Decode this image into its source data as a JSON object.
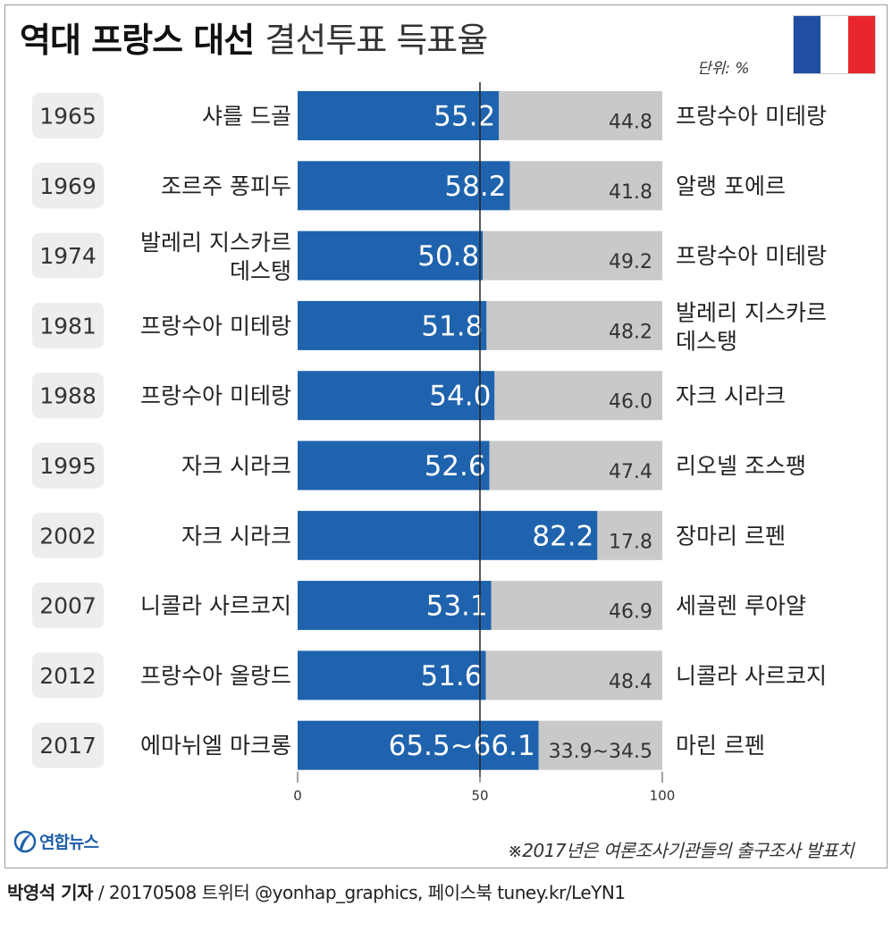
{
  "header": {
    "title_bold": "역대 프랑스 대선",
    "title_light": "결선투표 득표율",
    "unit": "단위: %"
  },
  "flag_colors": [
    "#1f4ea3",
    "#ffffff",
    "#e8262c"
  ],
  "colors": {
    "winner": "#1f63ae",
    "loser": "#c9c9c9",
    "year_box": "#ededed"
  },
  "chart_data": {
    "type": "bar",
    "stacked": true,
    "orientation": "horizontal",
    "xlim": [
      0,
      100
    ],
    "x_ticks": [
      "0",
      "50",
      "100"
    ],
    "midline": 50,
    "rows": [
      {
        "year": "1965",
        "winner": [
          "샤를 드골"
        ],
        "winner_pct": 55.2,
        "winner_label": "55.2",
        "loser": [
          "프랑수아 미테랑"
        ],
        "loser_pct": 44.8,
        "loser_label": "44.8"
      },
      {
        "year": "1969",
        "winner": [
          "조르주 퐁피두"
        ],
        "winner_pct": 58.2,
        "winner_label": "58.2",
        "loser": [
          "알랭 포에르"
        ],
        "loser_pct": 41.8,
        "loser_label": "41.8"
      },
      {
        "year": "1974",
        "winner": [
          "발레리 지스카르",
          "데스탱"
        ],
        "winner_pct": 50.8,
        "winner_label": "50.8",
        "loser": [
          "프랑수아 미테랑"
        ],
        "loser_pct": 49.2,
        "loser_label": "49.2"
      },
      {
        "year": "1981",
        "winner": [
          "프랑수아 미테랑"
        ],
        "winner_pct": 51.8,
        "winner_label": "51.8",
        "loser": [
          "발레리 지스카르",
          "데스탱"
        ],
        "loser_pct": 48.2,
        "loser_label": "48.2"
      },
      {
        "year": "1988",
        "winner": [
          "프랑수아 미테랑"
        ],
        "winner_pct": 54.0,
        "winner_label": "54.0",
        "loser": [
          "자크 시라크"
        ],
        "loser_pct": 46.0,
        "loser_label": "46.0"
      },
      {
        "year": "1995",
        "winner": [
          "자크 시라크"
        ],
        "winner_pct": 52.6,
        "winner_label": "52.6",
        "loser": [
          "리오넬 조스팽"
        ],
        "loser_pct": 47.4,
        "loser_label": "47.4"
      },
      {
        "year": "2002",
        "winner": [
          "자크 시라크"
        ],
        "winner_pct": 82.2,
        "winner_label": "82.2",
        "loser": [
          "장마리 르펜"
        ],
        "loser_pct": 17.8,
        "loser_label": "17.8"
      },
      {
        "year": "2007",
        "winner": [
          "니콜라 사르코지"
        ],
        "winner_pct": 53.1,
        "winner_label": "53.1",
        "loser": [
          "세골렌 루아얄"
        ],
        "loser_pct": 46.9,
        "loser_label": "46.9"
      },
      {
        "year": "2012",
        "winner": [
          "프랑수아 올랑드"
        ],
        "winner_pct": 51.6,
        "winner_label": "51.6",
        "loser": [
          "니콜라 사르코지"
        ],
        "loser_pct": 48.4,
        "loser_label": "48.4"
      },
      {
        "year": "2017",
        "winner": [
          "에마뉘엘 마크롱"
        ],
        "winner_pct": 66.1,
        "winner_label": "65.5~66.1",
        "loser": [
          "마린 르펜"
        ],
        "loser_pct": 33.9,
        "loser_label": "33.9~34.5"
      }
    ]
  },
  "footer": {
    "logo_text": "연합뉴스",
    "note": "※2017년은 여론조사기관들의 출구조사 발표치",
    "credit_bold": "박영석 기자",
    "credit_rest": " / 20170508   트위터 @yonhap_graphics, 페이스북 tuney.kr/LeYN1"
  }
}
